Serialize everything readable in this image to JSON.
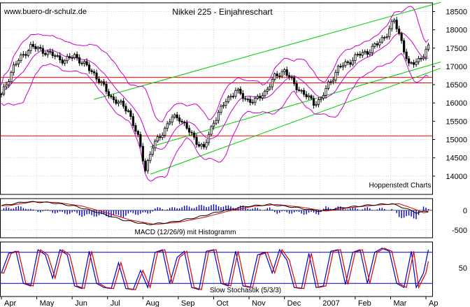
{
  "header": {
    "website": "www.buero-dr-schulz.de",
    "title": "Nikkei 225 - Einjahreschart",
    "watermark": "Hoppenstedt Charts"
  },
  "chart_data": [
    {
      "type": "line",
      "name": "price-panel",
      "ylim": [
        13500,
        18700
      ],
      "ticks": [
        14000,
        14500,
        15000,
        15500,
        16000,
        16500,
        17000,
        17500,
        18000,
        18500
      ],
      "x_months": [
        "Apr",
        "May",
        "Jun",
        "Jul",
        "Aug",
        "Sep",
        "Oct",
        "Nov",
        "Dec",
        "2007",
        "Feb",
        "Mar",
        "Ap"
      ],
      "price_knots": [
        [
          0,
          16200
        ],
        [
          5,
          17000
        ],
        [
          12,
          17550
        ],
        [
          18,
          17400
        ],
        [
          26,
          17150
        ],
        [
          30,
          17300
        ],
        [
          38,
          16800
        ],
        [
          45,
          16150
        ],
        [
          52,
          15800
        ],
        [
          56,
          15050
        ],
        [
          59,
          14200
        ],
        [
          62,
          14800
        ],
        [
          66,
          15200
        ],
        [
          70,
          15600
        ],
        [
          73,
          15600
        ],
        [
          76,
          15300
        ],
        [
          80,
          14950
        ],
        [
          83,
          14750
        ],
        [
          87,
          15500
        ],
        [
          92,
          16050
        ],
        [
          96,
          16350
        ],
        [
          100,
          16100
        ],
        [
          104,
          16050
        ],
        [
          108,
          16300
        ],
        [
          112,
          16700
        ],
        [
          116,
          16900
        ],
        [
          120,
          16500
        ],
        [
          124,
          16250
        ],
        [
          128,
          16000
        ],
        [
          131,
          16100
        ],
        [
          134,
          16500
        ],
        [
          138,
          16950
        ],
        [
          142,
          17100
        ],
        [
          146,
          17300
        ],
        [
          150,
          17400
        ],
        [
          154,
          17600
        ],
        [
          158,
          17900
        ],
        [
          161,
          18250
        ],
        [
          164,
          17700
        ],
        [
          167,
          17000
        ],
        [
          170,
          17150
        ],
        [
          173,
          17300
        ],
        [
          175,
          17500
        ]
      ],
      "bollinger_band_offset": 550,
      "support_lines": [
        16700,
        16550,
        15100
      ],
      "trend_channels": [
        {
          "x": [
            38,
            180
          ],
          "y": [
            16100,
            18750
          ]
        },
        {
          "x": [
            61,
            180
          ],
          "y": [
            14800,
            17120
          ]
        },
        {
          "x": [
            61,
            180
          ],
          "y": [
            14050,
            16950
          ]
        }
      ],
      "colors": {
        "candles": "#000000",
        "bands": "#cc00cc",
        "trend": "#00cc00",
        "support": "#ff0000",
        "grid": "#bbbbbb"
      }
    },
    {
      "type": "bar",
      "name": "macd-panel",
      "label": "MACD (12/26/9) mit Histogramm",
      "ylim": [
        -700,
        300
      ],
      "ticks": [
        0,
        -500
      ],
      "macd_knots": [
        [
          0,
          120
        ],
        [
          10,
          220
        ],
        [
          20,
          200
        ],
        [
          30,
          110
        ],
        [
          40,
          -60
        ],
        [
          50,
          -250
        ],
        [
          60,
          -360
        ],
        [
          70,
          -300
        ],
        [
          80,
          -180
        ],
        [
          90,
          -20
        ],
        [
          100,
          100
        ],
        [
          110,
          150
        ],
        [
          120,
          80
        ],
        [
          130,
          -20
        ],
        [
          140,
          70
        ],
        [
          150,
          130
        ],
        [
          160,
          170
        ],
        [
          166,
          40
        ],
        [
          170,
          -60
        ],
        [
          175,
          -20
        ]
      ],
      "signal_lag": 3,
      "colors": {
        "macd": "#000000",
        "signal": "#dd0000",
        "histogram": "#0000cc"
      }
    },
    {
      "type": "line",
      "name": "stochastic-panel",
      "label": "Slow Stochastik (5/3/3)",
      "ylim": [
        0,
        100
      ],
      "ticks": [
        50
      ],
      "levels": [
        80,
        20
      ],
      "stoch_knots": [
        [
          0,
          40
        ],
        [
          3,
          78
        ],
        [
          6,
          82
        ],
        [
          9,
          20
        ],
        [
          12,
          15
        ],
        [
          15,
          85
        ],
        [
          18,
          75
        ],
        [
          21,
          30
        ],
        [
          24,
          85
        ],
        [
          27,
          75
        ],
        [
          30,
          15
        ],
        [
          33,
          10
        ],
        [
          36,
          82
        ],
        [
          39,
          20
        ],
        [
          42,
          12
        ],
        [
          45,
          10
        ],
        [
          48,
          60
        ],
        [
          51,
          10
        ],
        [
          54,
          8
        ],
        [
          57,
          45
        ],
        [
          60,
          12
        ],
        [
          63,
          80
        ],
        [
          66,
          85
        ],
        [
          69,
          20
        ],
        [
          72,
          70
        ],
        [
          75,
          82
        ],
        [
          78,
          12
        ],
        [
          81,
          8
        ],
        [
          84,
          82
        ],
        [
          87,
          85
        ],
        [
          90,
          20
        ],
        [
          93,
          15
        ],
        [
          96,
          82
        ],
        [
          99,
          15
        ],
        [
          102,
          12
        ],
        [
          105,
          75
        ],
        [
          108,
          80
        ],
        [
          111,
          40
        ],
        [
          114,
          85
        ],
        [
          117,
          65
        ],
        [
          120,
          12
        ],
        [
          123,
          10
        ],
        [
          126,
          78
        ],
        [
          129,
          12
        ],
        [
          132,
          15
        ],
        [
          135,
          82
        ],
        [
          138,
          85
        ],
        [
          141,
          18
        ],
        [
          144,
          80
        ],
        [
          147,
          85
        ],
        [
          150,
          20
        ],
        [
          153,
          80
        ],
        [
          156,
          88
        ],
        [
          159,
          82
        ],
        [
          162,
          20
        ],
        [
          165,
          12
        ],
        [
          168,
          82
        ],
        [
          170,
          12
        ],
        [
          173,
          40
        ],
        [
          175,
          85
        ]
      ],
      "colors": {
        "k": "#0000cc",
        "d": "#dd0000",
        "levels": "#0000aa"
      }
    }
  ]
}
